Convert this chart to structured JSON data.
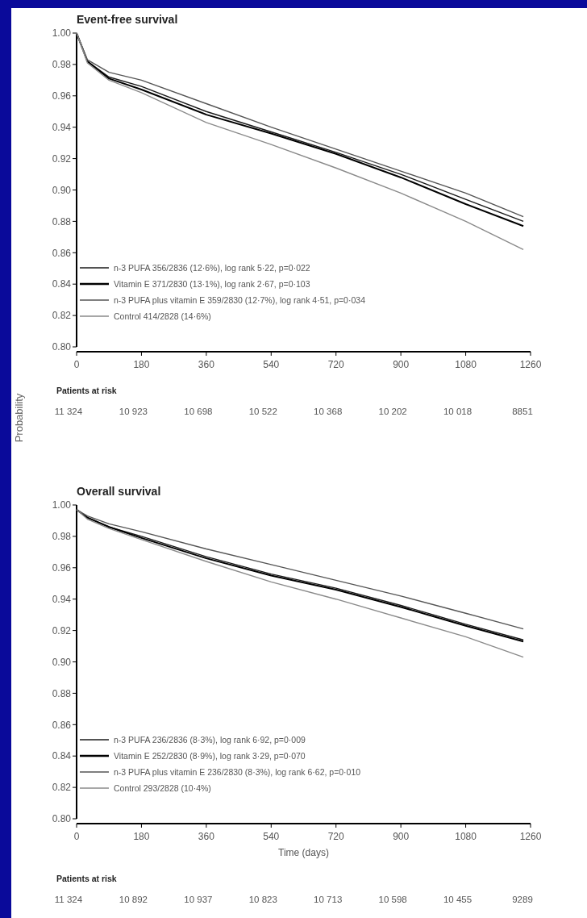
{
  "chart_data": [
    {
      "type": "line",
      "title": "Event-free survival",
      "ylabel": "Probability",
      "x": [
        0,
        30,
        90,
        180,
        360,
        540,
        720,
        900,
        1080,
        1240
      ],
      "xlim": [
        0,
        1260
      ],
      "xticks": [
        0,
        180,
        360,
        540,
        720,
        900,
        1080,
        1260
      ],
      "ylim": [
        0.8,
        1.0
      ],
      "yticks": [
        {
          "value": 0.8,
          "label": "0.80"
        },
        {
          "value": 0.82,
          "label": "0.82"
        },
        {
          "value": 0.84,
          "label": "0.84"
        },
        {
          "value": 0.86,
          "label": "0.86"
        },
        {
          "value": 0.88,
          "label": "0.88"
        },
        {
          "value": 0.9,
          "label": "0.90"
        },
        {
          "value": 0.92,
          "label": "0.92"
        },
        {
          "value": 0.94,
          "label": "0.94"
        },
        {
          "value": 0.96,
          "label": "0.96"
        },
        {
          "value": 0.98,
          "label": "0.98"
        },
        {
          "value": 1.0,
          "label": "1.00"
        }
      ],
      "legend": "bottom left",
      "grid": false,
      "series": [
        {
          "name": "n-3 PUFA 356/2836 (12·6%), log rank 5·22, p=0·022",
          "color": "#1a1a1a",
          "values": [
            1.0,
            0.982,
            0.972,
            0.966,
            0.95,
            0.937,
            0.924,
            0.91,
            0.894,
            0.88
          ]
        },
        {
          "name": "Vitamin E 371/2830 (13·1%), log rank 2·67, p=0·103",
          "color": "#000000",
          "values": [
            1.0,
            0.982,
            0.971,
            0.964,
            0.948,
            0.936,
            0.923,
            0.908,
            0.891,
            0.877
          ]
        },
        {
          "name": "n-3 PUFA plus vitamin E 359/2830 (12·7%), log rank 4·51, p=0·034",
          "color": "#555555",
          "values": [
            1.0,
            0.983,
            0.975,
            0.97,
            0.955,
            0.94,
            0.926,
            0.912,
            0.898,
            0.883
          ]
        },
        {
          "name": "Control 414/2828 (14·6%)",
          "color": "#8a8a8a",
          "values": [
            1.0,
            0.981,
            0.97,
            0.962,
            0.943,
            0.929,
            0.914,
            0.898,
            0.88,
            0.862
          ]
        }
      ],
      "annotations": [
        "Patients at risk",
        "11 324",
        "10 923",
        "10 698",
        "10 522",
        "10 368",
        "10 202",
        "10 018",
        "8851"
      ]
    },
    {
      "type": "line",
      "title": "Overall survival",
      "xlabel": "Time (days)",
      "x": [
        0,
        30,
        90,
        180,
        360,
        540,
        720,
        900,
        1080,
        1240
      ],
      "xlim": [
        0,
        1260
      ],
      "xticks": [
        0,
        180,
        360,
        540,
        720,
        900,
        1080,
        1260
      ],
      "ylim": [
        0.8,
        1.0
      ],
      "yticks": [
        {
          "value": 0.8,
          "label": "0.80"
        },
        {
          "value": 0.82,
          "label": "0.82"
        },
        {
          "value": 0.84,
          "label": "0.84"
        },
        {
          "value": 0.86,
          "label": "0.86"
        },
        {
          "value": 0.88,
          "label": "0.88"
        },
        {
          "value": 0.9,
          "label": "0.90"
        },
        {
          "value": 0.92,
          "label": "0.92"
        },
        {
          "value": 0.94,
          "label": "0.94"
        },
        {
          "value": 0.96,
          "label": "0.96"
        },
        {
          "value": 0.98,
          "label": "0.98"
        },
        {
          "value": 1.0,
          "label": "1.00"
        }
      ],
      "legend": "bottom left",
      "grid": false,
      "series": [
        {
          "name": "n-3 PUFA 236/2836 (8·3%), log rank 6·92, p=0·009",
          "color": "#1a1a1a",
          "values": [
            0.997,
            0.992,
            0.986,
            0.98,
            0.967,
            0.956,
            0.947,
            0.936,
            0.924,
            0.914
          ]
        },
        {
          "name": "Vitamin E 252/2830 (8·9%), log rank 3·29, p=0·070",
          "color": "#000000",
          "values": [
            0.997,
            0.992,
            0.986,
            0.979,
            0.966,
            0.955,
            0.946,
            0.935,
            0.923,
            0.913
          ]
        },
        {
          "name": "n-3 PUFA plus vitamin E 236/2830 (8·3%), log rank 6·62, p=0·010",
          "color": "#555555",
          "values": [
            0.997,
            0.993,
            0.988,
            0.983,
            0.972,
            0.962,
            0.952,
            0.942,
            0.931,
            0.921
          ]
        },
        {
          "name": "Control 293/2828 (10·4%)",
          "color": "#8a8a8a",
          "values": [
            0.997,
            0.991,
            0.985,
            0.978,
            0.964,
            0.951,
            0.94,
            0.928,
            0.916,
            0.903
          ]
        }
      ],
      "annotations": [
        "Patients at risk",
        "11 324",
        "10 892",
        "10 937",
        "10 823",
        "10 713",
        "10 598",
        "10 455",
        "9289"
      ]
    }
  ]
}
